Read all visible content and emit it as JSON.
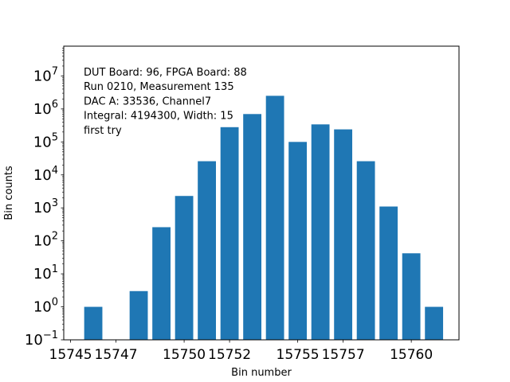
{
  "chart_data": {
    "type": "bar",
    "xlabel": "Bin number",
    "ylabel": "Bin counts",
    "yscale": "log",
    "xlim": [
      15744.7,
      15762.1
    ],
    "ylim": [
      0.1,
      80000000
    ],
    "x": [
      15746,
      15747,
      15748,
      15749,
      15750,
      15751,
      15752,
      15753,
      15754,
      15755,
      15756,
      15757,
      15758,
      15759,
      15760,
      15761
    ],
    "values": [
      1,
      0,
      3,
      260,
      2300,
      26000,
      280000,
      700000,
      2500000,
      100000,
      340000,
      240000,
      26000,
      1100,
      42,
      1
    ],
    "bar_color": "#1f77b4",
    "xticks": [
      15745,
      15747,
      15750,
      15752,
      15755,
      15757,
      15760
    ],
    "xtick_labels": [
      "15745",
      "15747",
      "15750",
      "15752",
      "15755",
      "15757",
      "15760"
    ],
    "yticks": [
      0.1,
      1,
      10,
      100,
      1000,
      10000,
      100000,
      1000000,
      10000000
    ],
    "ytick_exponents": [
      "−1",
      "0",
      "1",
      "2",
      "3",
      "4",
      "5",
      "6",
      "7"
    ],
    "ytick_base": "10",
    "annotation_lines": [
      "DUT Board: 96, FPGA Board: 88",
      "Run 0210, Measurement 135",
      "DAC A: 33536, Channel7",
      "Integral: 4194300, Width: 15",
      "first try"
    ]
  }
}
